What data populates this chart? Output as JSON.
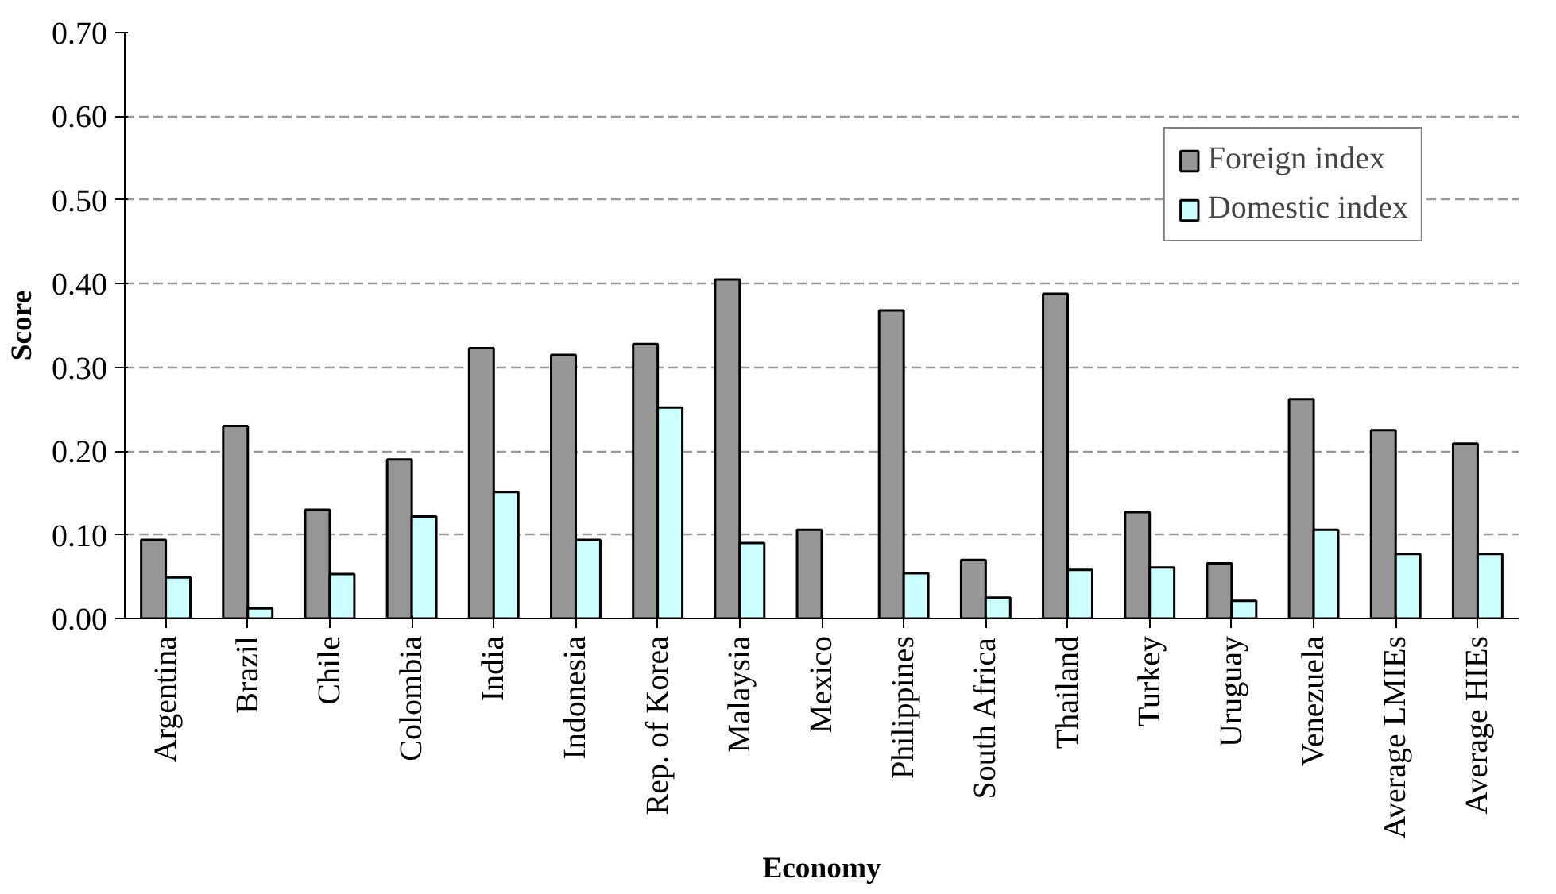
{
  "chart_data": {
    "type": "bar",
    "xlabel": "Economy",
    "ylabel": "Score",
    "categories": [
      "Argentina",
      "Brazil",
      "Chile",
      "Colombia",
      "India",
      "Indonesia",
      "Rep. of Korea",
      "Malaysia",
      "Mexico",
      "Philippines",
      "South Africa",
      "Thailand",
      "Turkey",
      "Uruguay",
      "Venezuela",
      "Average LMIEs",
      "Average HIEs"
    ],
    "series": [
      {
        "name": "Foreign index",
        "color": "#969696",
        "values": [
          0.094,
          0.23,
          0.13,
          0.19,
          0.323,
          0.315,
          0.328,
          0.405,
          0.106,
          0.368,
          0.07,
          0.388,
          0.127,
          0.066,
          0.262,
          0.225,
          0.209
        ]
      },
      {
        "name": "Domestic index",
        "color": "#ccffff",
        "values": [
          0.049,
          0.012,
          0.053,
          0.122,
          0.151,
          0.094,
          0.252,
          0.09,
          null,
          0.054,
          0.025,
          0.058,
          0.061,
          0.021,
          0.106,
          0.077,
          0.077
        ]
      }
    ],
    "ylim": [
      0,
      0.7
    ],
    "yticks": [
      {
        "value": 0,
        "label": "0.00"
      },
      {
        "value": 0.1,
        "label": "0.10"
      },
      {
        "value": 0.2,
        "label": "0.20"
      },
      {
        "value": 0.3,
        "label": "0.30"
      },
      {
        "value": 0.4,
        "label": "0.40"
      },
      {
        "value": 0.5,
        "label": "0.50"
      },
      {
        "value": 0.6,
        "label": "0.60"
      },
      {
        "value": 0.7,
        "label": "0.70"
      }
    ],
    "grid": "y",
    "legend": "top right"
  }
}
